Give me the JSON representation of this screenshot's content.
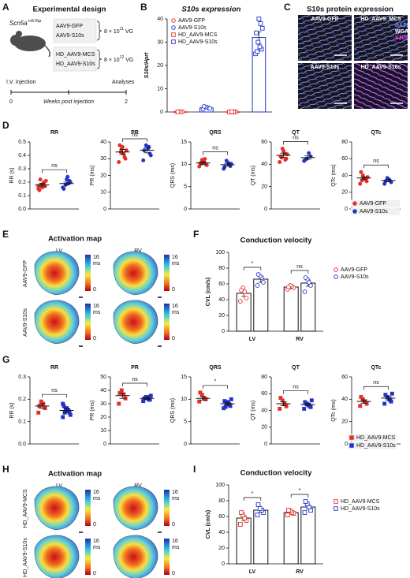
{
  "figure": {
    "panel_labels": [
      "A",
      "B",
      "C",
      "D",
      "E",
      "F",
      "G",
      "H",
      "I"
    ],
    "panel_a": {
      "title": "Experimental design",
      "genotype": "Scn5a",
      "genotype_sup": "+/Δ7bp",
      "groups": [
        {
          "names": [
            "AAV9-GFP",
            "AAV9-S10s"
          ],
          "dose": "8 × 10",
          "dose_exp": "11",
          "unit": "VG"
        },
        {
          "names": [
            "HD_AAV9-MCS",
            "HD_AAV9-S10s"
          ],
          "dose": "8 × 10",
          "dose_exp": "12",
          "unit": "VG"
        }
      ],
      "start_label": "I.V. injection",
      "end_label": "Analyses",
      "timeline_ticks": [
        0,
        2
      ],
      "timeline_label": "Weeks post injection"
    },
    "panel_c": {
      "title": "S10s protein expression",
      "images": [
        "AAV9-GFP",
        "HD_AAV9_MCS",
        "AAV9-S10s",
        "HD_AAV9-S10s"
      ],
      "channels": [
        "DAPI",
        "WGA",
        "S10s"
      ]
    },
    "panel_e": {
      "title": "Activation map",
      "columns": [
        "LV",
        "RV"
      ],
      "rows": [
        "AAV9-GFP",
        "AAV9-S10s"
      ],
      "colorbar": {
        "max": 16,
        "unit": "ms",
        "min": 0
      }
    },
    "panel_h": {
      "title": "Activation map",
      "columns": [
        "LV",
        "RV"
      ],
      "rows": [
        "HD_AAV9-MCS",
        "HD_AAV9-S10s"
      ],
      "colorbar": {
        "max": 16,
        "unit": "ms",
        "min": 0
      }
    }
  },
  "chart_data": [
    {
      "type": "bar",
      "title": "S10s expression",
      "ylabel": "S10s/Hprt",
      "ylim": [
        0,
        40
      ],
      "yticks": [
        0,
        10,
        20,
        30,
        40
      ],
      "legend": "upper left",
      "series": [
        {
          "name": "AAV9-GFP",
          "color": "#e3302b",
          "marker": "circle",
          "filled": false,
          "values": [
            0.1
          ],
          "errors": [
            0.05
          ],
          "points": [
            [
              0,
              0.1,
              0,
              0.2,
              0.1
            ]
          ]
        },
        {
          "name": "AAV9-S10s",
          "color": "#2233cc",
          "marker": "circle",
          "filled": false,
          "values": [
            1.8
          ],
          "errors": [
            0.2
          ],
          "points": [
            [
              1.2,
              1.6,
              1.9,
              2.2,
              2.4,
              1.5
            ]
          ]
        },
        {
          "name": "HD_AAV9-MCS",
          "color": "#e3302b",
          "marker": "square",
          "filled": false,
          "values": [
            0.1
          ],
          "errors": [
            0.05
          ],
          "points": [
            [
              0,
              0.1,
              0,
              0.1
            ]
          ]
        },
        {
          "name": "HD_AAV9-S10s",
          "color": "#2233cc",
          "marker": "square",
          "filled": false,
          "values": [
            32
          ],
          "errors": [
            2.5
          ],
          "points": [
            [
              25,
              27,
              28,
              30,
              34,
              36,
              38,
              40,
              26
            ]
          ]
        }
      ]
    },
    {
      "type": "dot",
      "title": "RR",
      "ylabel": "RR (s)",
      "ylim": [
        0,
        0.5
      ],
      "yticks": [
        {
          "value": 0,
          "label": "0.0"
        },
        {
          "value": 0.1,
          "label": "0.1"
        },
        {
          "value": 0.2,
          "label": "0.2"
        },
        {
          "value": 0.3,
          "label": "0.3"
        },
        {
          "value": 0.4,
          "label": "0.4"
        },
        {
          "value": 0.5,
          "label": "0.5"
        }
      ],
      "annotation": "ns",
      "series": [
        {
          "color": "#e3302b",
          "marker": "circle",
          "filled": true,
          "values": [
            0.18
          ],
          "errors": [
            0.01
          ],
          "points": [
            [
              0.15,
              0.17,
              0.19,
              0.18,
              0.14,
              0.21,
              0.2,
              0.16,
              0.22,
              0.17
            ]
          ]
        },
        {
          "color": "#2233cc",
          "marker": "circle",
          "filled": true,
          "values": [
            0.19
          ],
          "errors": [
            0.01
          ],
          "points": [
            [
              0.16,
              0.21,
              0.24,
              0.18,
              0.15,
              0.2,
              0.19,
              0.22
            ]
          ]
        }
      ]
    },
    {
      "type": "dot",
      "title": "PR",
      "ylabel": "PR (ms)",
      "ylim": [
        0,
        40
      ],
      "yticks": [
        0,
        10,
        20,
        30,
        40
      ],
      "annotation": "ns",
      "series": [
        {
          "color": "#e3302b",
          "marker": "circle",
          "filled": true,
          "values": [
            34
          ],
          "errors": [
            1.5
          ],
          "points": [
            [
              28,
              30,
              33,
              36,
              38,
              35,
              31,
              37,
              34
            ]
          ]
        },
        {
          "color": "#2233cc",
          "marker": "circle",
          "filled": true,
          "values": [
            35
          ],
          "errors": [
            1.5
          ],
          "points": [
            [
              29,
              33,
              36,
              38,
              35,
              32,
              37
            ]
          ]
        }
      ]
    },
    {
      "type": "dot",
      "title": "QRS",
      "ylabel": "QRS (ms)",
      "ylim": [
        0,
        15
      ],
      "yticks": [
        0,
        5,
        10,
        15
      ],
      "annotation": "ns",
      "series": [
        {
          "color": "#e3302b",
          "marker": "circle",
          "filled": true,
          "values": [
            10.3
          ],
          "errors": [
            0.3
          ],
          "points": [
            [
              9.5,
              10,
              10.5,
              11,
              10.2,
              9.8,
              11.2,
              10.6,
              10.1
            ]
          ]
        },
        {
          "color": "#2233cc",
          "marker": "circle",
          "filled": true,
          "values": [
            9.9
          ],
          "errors": [
            0.3
          ],
          "points": [
            [
              9,
              9.6,
              10.3,
              10.8,
              9.4,
              10.1,
              9.9
            ]
          ]
        }
      ]
    },
    {
      "type": "dot",
      "title": "QT",
      "ylabel": "QT (ms)",
      "ylim": [
        0,
        60
      ],
      "yticks": [
        0,
        20,
        40,
        60
      ],
      "annotation": "ns",
      "series": [
        {
          "color": "#e3302b",
          "marker": "circle",
          "filled": true,
          "values": [
            48
          ],
          "errors": [
            2
          ],
          "points": [
            [
              42,
              45,
              50,
              54,
              47,
              49,
              44,
              52,
              46
            ]
          ]
        },
        {
          "color": "#2233cc",
          "marker": "circle",
          "filled": true,
          "values": [
            46
          ],
          "errors": [
            1.5
          ],
          "points": [
            [
              43,
              47,
              50,
              45,
              44
            ]
          ]
        }
      ]
    },
    {
      "type": "dot",
      "title": "QTc",
      "ylabel": "QTc (ms)",
      "ylim": [
        0,
        80
      ],
      "yticks": [
        0,
        20,
        40,
        60,
        80
      ],
      "annotation": "ns",
      "legend": "lower right",
      "series": [
        {
          "name": "AAV9-GFP",
          "color": "#e3302b",
          "marker": "circle",
          "filled": true,
          "values": [
            37
          ],
          "errors": [
            1.5
          ],
          "points": [
            [
              30,
              33,
              36,
              40,
              44,
              38,
              35,
              37,
              34
            ]
          ]
        },
        {
          "name": "AAV9-S10s",
          "color": "#2233cc",
          "marker": "circle",
          "filled": true,
          "values": [
            34
          ],
          "errors": [
            1.5
          ],
          "points": [
            [
              30,
              32,
              35,
              37,
              33
            ]
          ]
        }
      ]
    },
    {
      "type": "bar",
      "title": "Conduction velocity",
      "ylabel": "CVL (cm/s)",
      "ylim": [
        0,
        100
      ],
      "yticks": [
        0,
        20,
        40,
        60,
        80,
        100
      ],
      "categories": [
        "LV",
        "RV"
      ],
      "annotations": [
        "*",
        "ns"
      ],
      "bar_edge": "#111",
      "legend": "upper right",
      "series": [
        {
          "name": "AAV9-GFP",
          "color": "#e3302b",
          "marker": "circle",
          "filled": false,
          "values": [
            48,
            56
          ],
          "errors": [
            4,
            2
          ],
          "points": [
            [
              38,
              42,
              50,
              55,
              52
            ],
            [
              53,
              55,
              57,
              58,
              56
            ]
          ]
        },
        {
          "name": "AAV9-S10s",
          "color": "#2233cc",
          "marker": "circle",
          "filled": false,
          "values": [
            66,
            61
          ],
          "errors": [
            4,
            4
          ],
          "points": [
            [
              58,
              62,
              68,
              70,
              72
            ],
            [
              50,
              58,
              62,
              66,
              68
            ]
          ]
        }
      ]
    },
    {
      "type": "dot",
      "title": "RR",
      "ylabel": "RR (s)",
      "ylim": [
        0,
        0.3
      ],
      "yticks": [
        {
          "value": 0,
          "label": "0.0"
        },
        {
          "value": 0.1,
          "label": "0.1"
        },
        {
          "value": 0.2,
          "label": "0.2"
        },
        {
          "value": 0.3,
          "label": "0.3"
        }
      ],
      "annotation": "ns",
      "series": [
        {
          "color": "#e3302b",
          "marker": "square",
          "filled": true,
          "values": [
            0.17
          ],
          "errors": [
            0.01
          ],
          "points": [
            [
              0.14,
              0.16,
              0.18,
              0.19,
              0.17
            ]
          ]
        },
        {
          "color": "#2233cc",
          "marker": "square",
          "filled": true,
          "values": [
            0.15
          ],
          "errors": [
            0.01
          ],
          "points": [
            [
              0.12,
              0.14,
              0.15,
              0.16,
              0.17,
              0.13,
              0.15,
              0.16,
              0.14,
              0.18
            ]
          ]
        }
      ]
    },
    {
      "type": "dot",
      "title": "PR",
      "ylabel": "PR (ms)",
      "ylim": [
        0,
        50
      ],
      "yticks": [
        0,
        10,
        20,
        30,
        40,
        50
      ],
      "annotation": "ns",
      "series": [
        {
          "color": "#e3302b",
          "marker": "square",
          "filled": true,
          "values": [
            36
          ],
          "errors": [
            2
          ],
          "points": [
            [
              30,
              34,
              37,
              40,
              38
            ]
          ]
        },
        {
          "color": "#2233cc",
          "marker": "square",
          "filled": true,
          "values": [
            34
          ],
          "errors": [
            0.7
          ],
          "points": [
            [
              32,
              33,
              34,
              35,
              34,
              36,
              33,
              35
            ]
          ]
        }
      ]
    },
    {
      "type": "dot",
      "title": "QRS",
      "ylabel": "QRS (ms)",
      "ylim": [
        0,
        15
      ],
      "yticks": [
        0,
        5,
        10,
        15
      ],
      "annotation": "*",
      "series": [
        {
          "color": "#e3302b",
          "marker": "square",
          "filled": true,
          "values": [
            10.2
          ],
          "errors": [
            0.4
          ],
          "points": [
            [
              9.5,
              10,
              10.3,
              11,
              11.5
            ]
          ]
        },
        {
          "color": "#2233cc",
          "marker": "square",
          "filled": true,
          "values": [
            9
          ],
          "errors": [
            0.3
          ],
          "points": [
            [
              8,
              8.5,
              9,
              9.2,
              9.6,
              10,
              8.8,
              9.4,
              8.3
            ]
          ]
        }
      ]
    },
    {
      "type": "dot",
      "title": "QT",
      "ylabel": "QT (ms)",
      "ylim": [
        0,
        80
      ],
      "yticks": [
        0,
        20,
        40,
        60,
        80
      ],
      "annotation": "ns",
      "series": [
        {
          "color": "#e3302b",
          "marker": "square",
          "filled": true,
          "values": [
            48
          ],
          "errors": [
            2.5
          ],
          "points": [
            [
              42,
              45,
              48,
              52,
              55
            ]
          ]
        },
        {
          "color": "#2233cc",
          "marker": "square",
          "filled": true,
          "values": [
            47
          ],
          "errors": [
            1.5
          ],
          "points": [
            [
              42,
              44,
              46,
              48,
              50,
              52,
              45,
              47
            ]
          ]
        }
      ]
    },
    {
      "type": "dot",
      "title": "QTc",
      "ylabel": "QTc (ms)",
      "ylim": [
        0,
        60
      ],
      "yticks": [
        0,
        20,
        40,
        60
      ],
      "annotation": "ns",
      "legend": "lower right",
      "series": [
        {
          "name": "HD_AAV9-MCS",
          "color": "#e3302b",
          "marker": "square",
          "filled": true,
          "values": [
            38
          ],
          "errors": [
            1.5
          ],
          "points": [
            [
              34,
              36,
              38,
              40,
              42
            ]
          ]
        },
        {
          "name": "HD_AAV9-S10s",
          "color": "#2233cc",
          "marker": "square",
          "filled": true,
          "values": [
            41
          ],
          "errors": [
            1.5
          ],
          "points": [
            [
              36,
              38,
              40,
              42,
              44,
              45,
              39
            ]
          ]
        }
      ]
    },
    {
      "type": "bar",
      "title": "Conduction velocity",
      "ylabel": "CVL (cm/s)",
      "ylim": [
        0,
        100
      ],
      "yticks": [
        0,
        20,
        40,
        60,
        80,
        100
      ],
      "categories": [
        "LV",
        "RV"
      ],
      "annotations": [
        "*",
        "*"
      ],
      "bar_edge": "#111",
      "legend": "upper right",
      "series": [
        {
          "name": "HD_AAV9-MCS",
          "color": "#e3302b",
          "marker": "square",
          "filled": false,
          "values": [
            58,
            65
          ],
          "errors": [
            3,
            1.5
          ],
          "points": [
            [
              50,
              55,
              58,
              62,
              65
            ],
            [
              62,
              64,
              65,
              67,
              68
            ]
          ]
        },
        {
          "name": "HD_AAV9-S10s",
          "color": "#2233cc",
          "marker": "square",
          "filled": false,
          "values": [
            68,
            72
          ],
          "errors": [
            2.5,
            2.5
          ],
          "points": [
            [
              62,
              65,
              68,
              70,
              75
            ],
            [
              65,
              68,
              72,
              76,
              79
            ]
          ]
        }
      ]
    }
  ]
}
